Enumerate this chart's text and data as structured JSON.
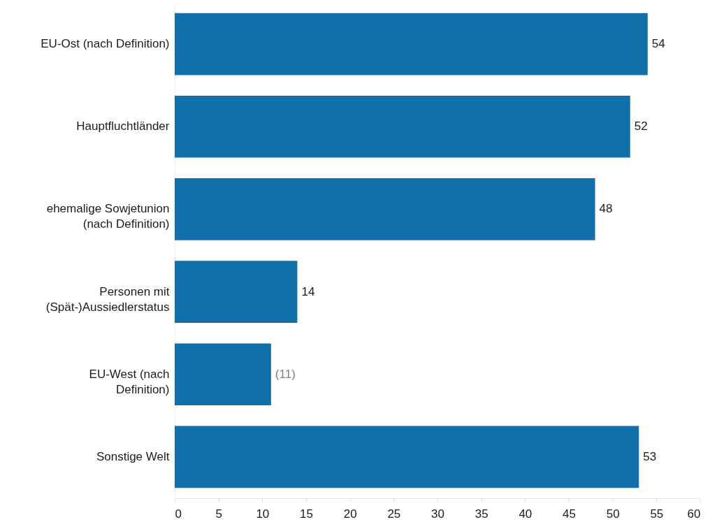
{
  "chart_data": {
    "type": "bar",
    "orientation": "horizontal",
    "categories": [
      "EU-Ost (nach Definition)",
      "Hauptfluchtländer",
      "ehemalige Sowjetunion (nach Definition)",
      "Personen mit (Spät-)Aussiedlerstatus",
      "EU-West (nach Definition)",
      "Sonstige Welt"
    ],
    "values": [
      54,
      52,
      48,
      14,
      11,
      53
    ],
    "color": "#1170aa",
    "value_labels": [
      "54",
      "52",
      "48",
      "14",
      "(11)",
      "53"
    ],
    "xlim": [
      0,
      60
    ],
    "xticks": [
      0,
      5,
      10,
      15,
      20,
      25,
      30,
      35,
      40,
      45,
      50,
      55,
      60
    ]
  }
}
